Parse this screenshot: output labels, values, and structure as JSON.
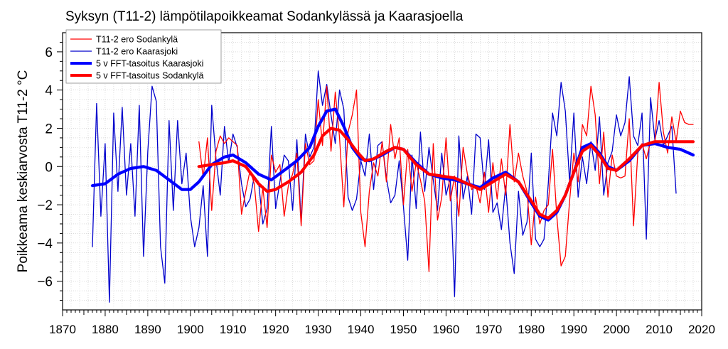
{
  "chart_data": {
    "type": "line",
    "title": "Syksyn (T11-2) lämpötilapoikkeamat Sodankylässä ja Kaarasjoella",
    "ylabel": "Poikkeama keskiarvosta T11-2 °C",
    "xlabel": "",
    "xlim": [
      1870,
      2020
    ],
    "ylim": [
      -7.5,
      7
    ],
    "x_ticks": [
      "1870",
      "1880",
      "1890",
      "1900",
      "1910",
      "1920",
      "1930",
      "1940",
      "1950",
      "1960",
      "1970",
      "1980",
      "1990",
      "2000",
      "2010",
      "2020"
    ],
    "y_ticks": [
      "-6",
      "-4",
      "-2",
      "0",
      "2",
      "4",
      "6"
    ],
    "grid": true,
    "legend_position": "top-left",
    "series": [
      {
        "name": "T11-2 ero Sodankylä",
        "color": "#ff0000",
        "style": "thin",
        "x_start": 1902,
        "values": [
          1.3,
          -0.6,
          1.5,
          -2.3,
          0.8,
          1.6,
          1.2,
          1.5,
          1.3,
          1.1,
          -2.5,
          -1.3,
          -0.2,
          -0.9,
          -3.4,
          -1.1,
          -3.2,
          0.6,
          -0.3,
          0.1,
          -2.6,
          -1.0,
          -0.4,
          0.7,
          -3.1,
          1.2,
          0.1,
          0.3,
          3.5,
          1.1,
          4.2,
          0.8,
          3.9,
          1.5,
          -2.1,
          1.8,
          2.7,
          4.0,
          -2.4,
          -4.2,
          -1.3,
          0.2,
          -0.5,
          1.3,
          -0.8,
          2.2,
          0.4,
          1.5,
          -2.0,
          0.9,
          -1.3,
          0.2,
          -0.7,
          -1.8,
          -5.5,
          1.2,
          -2.8,
          -1.6,
          1.5,
          -1.8,
          -0.5,
          -2.6,
          1.0,
          -0.4,
          -1.2,
          -1.0,
          -1.9,
          -0.3,
          -2.4,
          0.2,
          -1.7,
          0.4,
          -1.5,
          2.2,
          -0.8,
          0.7,
          -0.5,
          -1.3,
          -4.1,
          -1.6,
          -3.0,
          -2.3,
          -2.0,
          0.9,
          -2.6,
          -5.2,
          -4.7,
          -1.8,
          0.7,
          -0.8,
          2.2,
          1.6,
          4.2,
          2.7,
          -0.9,
          1.8,
          -1.6,
          0.6,
          -0.5,
          -0.6,
          -0.5,
          2.5,
          -3.1,
          0.7,
          1.2,
          0.4,
          1.3,
          1.2,
          4.4,
          1.8,
          0.7,
          2.6,
          1.3,
          2.9,
          2.3,
          2.2,
          2.2
        ]
      },
      {
        "name": "T11-2 ero Kaarasjoki",
        "color": "#0000cc",
        "style": "thin",
        "x_start": 1877,
        "values": [
          -4.2,
          3.3,
          -2.6,
          1.2,
          -7.1,
          2.8,
          -1.3,
          3.1,
          -1.5,
          1.2,
          -2.6,
          3.2,
          -4.7,
          0.8,
          4.2,
          3.4,
          -4.2,
          -6.1,
          2.4,
          -2.3,
          2.4,
          -0.9,
          0.7,
          -2.6,
          -4.2,
          -3.2,
          -1.0,
          -4.7,
          3.2,
          0.4,
          -1.5,
          2.1,
          0.2,
          1.7,
          1.0,
          -0.9,
          -2.1,
          -1.7,
          -0.5,
          -0.8,
          -3.0,
          -2.2,
          2.1,
          -2.2,
          -0.8,
          0.6,
          0.3,
          -2.3,
          1.4,
          -2.9,
          1.7,
          0.5,
          1.0,
          5.0,
          3.2,
          4.3,
          2.7,
          1.2,
          4.0,
          3.0,
          -1.6,
          -2.3,
          -1.7,
          0.3,
          -0.5,
          1.7,
          -1.2,
          1.1,
          1.3,
          -0.6,
          -1.9,
          -1.5,
          0.3,
          -2.1,
          -4.9,
          0.6,
          -2.2,
          1.8,
          -1.3,
          1.0,
          -0.7,
          -2.3,
          0.7,
          -1.5,
          -0.6,
          -6.8,
          1.6,
          -1.7,
          -0.5,
          -2.5,
          1.7,
          1.5,
          -1.2,
          1.4,
          -2.4,
          -1.9,
          -3.3,
          -1.0,
          -4.0,
          -5.6,
          -1.3,
          -3.6,
          -2.9,
          0.7,
          -3.8,
          -4.2,
          -3.8,
          -0.9,
          2.8,
          1.6,
          4.4,
          2.9,
          -0.8,
          2.8,
          -1.6,
          0.5,
          -0.9,
          1.3,
          -0.2,
          2.6,
          -1.5,
          0.2,
          0.8,
          2.7,
          1.6,
          2.3,
          4.7,
          1.6,
          1.1,
          2.8,
          -3.8,
          3.6,
          1.4,
          2.4,
          1.1,
          1.6,
          2.1,
          -1.4
        ]
      },
      {
        "name": "5 v FFT-tasoitus Kaarasjoki",
        "color": "#0000ff",
        "style": "thick",
        "x": [
          1877,
          1880,
          1883,
          1886,
          1889,
          1892,
          1895,
          1898,
          1900,
          1902,
          1905,
          1908,
          1910,
          1913,
          1916,
          1919,
          1922,
          1925,
          1928,
          1930,
          1932,
          1934,
          1936,
          1938,
          1940,
          1942,
          1945,
          1948,
          1950,
          1953,
          1956,
          1959,
          1962,
          1965,
          1968,
          1971,
          1974,
          1977,
          1980,
          1982,
          1984,
          1986,
          1988,
          1990,
          1992,
          1994,
          1996,
          1998,
          2000,
          2003,
          2006,
          2009,
          2012,
          2015,
          2018
        ],
        "values": [
          -1.0,
          -0.9,
          -0.4,
          -0.1,
          0.0,
          -0.2,
          -0.7,
          -1.2,
          -1.2,
          -0.8,
          0.1,
          0.5,
          0.6,
          0.2,
          -0.4,
          -0.7,
          -0.2,
          0.3,
          1.0,
          2.1,
          2.9,
          3.0,
          2.1,
          1.0,
          0.4,
          0.3,
          0.6,
          1.0,
          0.9,
          0.2,
          -0.4,
          -0.6,
          -0.7,
          -0.9,
          -1.1,
          -0.6,
          -0.3,
          -0.8,
          -1.9,
          -2.6,
          -2.8,
          -2.4,
          -1.5,
          -0.3,
          1.0,
          1.2,
          0.7,
          0.0,
          -0.2,
          0.3,
          1.1,
          1.2,
          1.0,
          0.9,
          0.6
        ]
      },
      {
        "name": "5 v FFT-tasoitus Sodankylä",
        "color": "#ff0000",
        "style": "thick",
        "x": [
          1902,
          1905,
          1908,
          1910,
          1913,
          1916,
          1918,
          1920,
          1923,
          1926,
          1929,
          1931,
          1933,
          1935,
          1937,
          1939,
          1941,
          1943,
          1946,
          1948,
          1950,
          1953,
          1956,
          1959,
          1962,
          1965,
          1968,
          1971,
          1974,
          1977,
          1980,
          1982,
          1984,
          1986,
          1988,
          1990,
          1992,
          1994,
          1996,
          1998,
          2000,
          2003,
          2006,
          2009,
          2012,
          2015,
          2018
        ],
        "values": [
          0.0,
          0.1,
          0.2,
          0.3,
          0.0,
          -0.9,
          -1.3,
          -1.2,
          -0.8,
          -0.3,
          0.6,
          1.6,
          2.0,
          1.9,
          1.4,
          0.8,
          0.3,
          0.4,
          0.8,
          1.0,
          0.9,
          0.1,
          -0.4,
          -0.5,
          -0.6,
          -0.9,
          -1.2,
          -0.8,
          -0.4,
          -0.8,
          -1.8,
          -2.5,
          -2.7,
          -2.3,
          -1.5,
          -0.3,
          0.8,
          1.1,
          0.6,
          -0.1,
          -0.2,
          0.4,
          1.1,
          1.3,
          1.3,
          1.3,
          1.3
        ]
      }
    ]
  }
}
